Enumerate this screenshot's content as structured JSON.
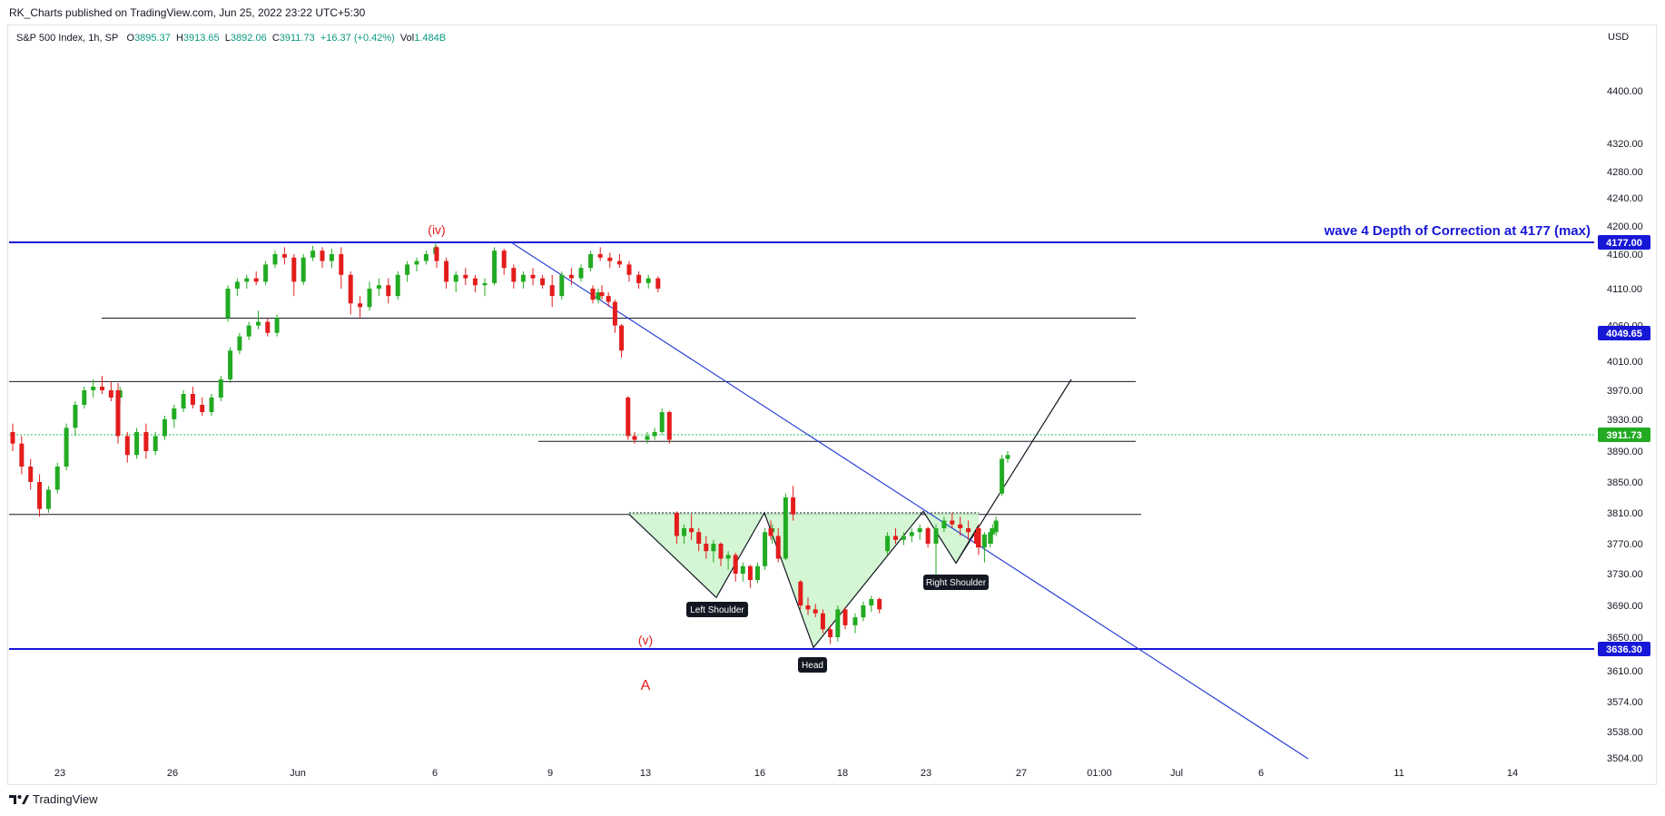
{
  "publisher": "RK_Charts published on TradingView.com, Jun 25, 2022 23:22 UTC+5:30",
  "legend": {
    "symbol": "S&P 500 Index, 1h, SP",
    "o_label": "O",
    "o": "3895.37",
    "h_label": "H",
    "h": "3913.65",
    "l_label": "L",
    "l": "3892.06",
    "c_label": "C",
    "c": "3911.73",
    "change": "+16.37 (+0.42%)",
    "vol_label": "Vol",
    "vol": "1.484B"
  },
  "currency": "USD",
  "footer": {
    "brand": "TradingView"
  },
  "colors": {
    "up": "#22ab22",
    "down": "#e31c1c",
    "blue": "#1717d8",
    "trend": "#2a3fd6",
    "black": "#131722",
    "pattern_fill": "#ccf5cc",
    "label_red": "#e31c1c",
    "dotted": "#22c55e"
  },
  "chart_data": {
    "type": "candlestick",
    "title": "",
    "y_axis": {
      "ticks": [
        4400,
        4320,
        4280,
        4240,
        4200,
        4160,
        4110,
        4060,
        4010,
        3970,
        3930,
        3890,
        3850,
        3810,
        3770,
        3730,
        3690,
        3650,
        3610,
        3574,
        3538,
        3504
      ],
      "tick_labels": [
        "4400.00",
        "4320.00",
        "4280.00",
        "4240.00",
        "4200.00",
        "4160.00",
        "4110.00",
        "4060.00",
        "4010.00",
        "3970.00",
        "3930.00",
        "3890.00",
        "3850.00",
        "3810.00",
        "3770.00",
        "3730.00",
        "3690.00",
        "3650.00",
        "3610.00",
        "3574.00",
        "3538.00",
        "3504.00"
      ]
    },
    "x_axis": {
      "tick_labels": [
        "23",
        "26",
        "Jun",
        "6",
        "9",
        "13",
        "16",
        "18",
        "23",
        "27",
        "01:00",
        "Jul",
        "6",
        "11",
        "14"
      ]
    },
    "price_labels": [
      {
        "label": "4177.00",
        "value": 4177,
        "color": "#1717d8"
      },
      {
        "label": "4049.65",
        "value": 4049.65,
        "color": "#1717d8"
      },
      {
        "label": "3911.73",
        "value": 3911.73,
        "color": "#22ab22"
      },
      {
        "label": "3636.30",
        "value": 3636.3,
        "color": "#1717d8"
      }
    ],
    "horizontal_lines": [
      {
        "value": 4177,
        "color": "blue",
        "note": "wave 4 top"
      },
      {
        "value": 4070,
        "color": "black"
      },
      {
        "value": 3982,
        "color": "black"
      },
      {
        "value": 3903,
        "color": "black"
      },
      {
        "value": 3808,
        "color": "black"
      },
      {
        "value": 3636.3,
        "color": "blue"
      }
    ],
    "annotations": {
      "wave_top": "wave 4 Depth of Correction at  4177 (max)",
      "wave_iv": "(iv)",
      "wave_v": "(v)",
      "wave_a": "A",
      "left_shoulder": "Left Shoulder",
      "head": "Head",
      "right_shoulder": "Right Shoulder"
    },
    "candles_ohlc": [
      [
        3915,
        3925,
        3890,
        3900
      ],
      [
        3900,
        3910,
        3860,
        3870
      ],
      [
        3870,
        3880,
        3840,
        3850
      ],
      [
        3850,
        3860,
        3805,
        3815
      ],
      [
        3815,
        3845,
        3810,
        3840
      ],
      [
        3840,
        3875,
        3835,
        3870
      ],
      [
        3870,
        3925,
        3865,
        3920
      ],
      [
        3920,
        3955,
        3910,
        3950
      ],
      [
        3950,
        3975,
        3945,
        3970
      ],
      [
        3970,
        3985,
        3960,
        3975
      ],
      [
        3975,
        3990,
        3965,
        3970
      ],
      [
        3970,
        3982,
        3955,
        3960
      ],
      [
        3960,
        3975,
        3950,
        3970
      ],
      [
        3970,
        3980,
        3900,
        3910
      ],
      [
        3910,
        3915,
        3875,
        3885
      ],
      [
        3885,
        3920,
        3880,
        3915
      ],
      [
        3915,
        3925,
        3880,
        3890
      ],
      [
        3890,
        3915,
        3885,
        3910
      ],
      [
        3910,
        3935,
        3905,
        3930
      ],
      [
        3930,
        3950,
        3920,
        3945
      ],
      [
        3945,
        3970,
        3940,
        3965
      ],
      [
        3965,
        3975,
        3945,
        3950
      ],
      [
        3950,
        3960,
        3935,
        3940
      ],
      [
        3940,
        3965,
        3935,
        3960
      ],
      [
        3960,
        3990,
        3955,
        3985
      ],
      [
        3985,
        4030,
        3980,
        4025
      ],
      [
        4025,
        4050,
        4020,
        4045
      ],
      [
        4045,
        4065,
        4040,
        4060
      ],
      [
        4060,
        4080,
        4055,
        4065
      ],
      [
        4065,
        4070,
        4045,
        4050
      ],
      [
        4050,
        4075,
        4045,
        4070
      ],
      [
        4070,
        4115,
        4065,
        4110
      ],
      [
        4110,
        4125,
        4100,
        4120
      ],
      [
        4120,
        4130,
        4110,
        4125
      ],
      [
        4125,
        4135,
        4115,
        4120
      ],
      [
        4120,
        4150,
        4115,
        4145
      ],
      [
        4145,
        4165,
        4140,
        4160
      ],
      [
        4160,
        4170,
        4145,
        4155
      ],
      [
        4155,
        4160,
        4100,
        4120
      ],
      [
        4120,
        4160,
        4115,
        4155
      ],
      [
        4155,
        4172,
        4150,
        4165
      ],
      [
        4165,
        4170,
        4140,
        4150
      ],
      [
        4150,
        4168,
        4140,
        4160
      ],
      [
        4160,
        4170,
        4110,
        4130
      ],
      [
        4130,
        4135,
        4075,
        4090
      ],
      [
        4090,
        4100,
        4070,
        4085
      ],
      [
        4085,
        4120,
        4080,
        4110
      ],
      [
        4110,
        4125,
        4100,
        4115
      ],
      [
        4115,
        4125,
        4090,
        4100
      ],
      [
        4100,
        4135,
        4095,
        4130
      ],
      [
        4130,
        4150,
        4120,
        4145
      ],
      [
        4145,
        4155,
        4135,
        4150
      ],
      [
        4150,
        4165,
        4145,
        4160
      ],
      [
        4160,
        4177,
        4155,
        4170
      ],
      [
        4170,
        4172,
        4140,
        4150
      ],
      [
        4150,
        4155,
        4110,
        4120
      ],
      [
        4120,
        4135,
        4105,
        4130
      ],
      [
        4130,
        4140,
        4115,
        4125
      ],
      [
        4125,
        4130,
        4105,
        4115
      ],
      [
        4115,
        4125,
        4100,
        4118
      ],
      [
        4118,
        4170,
        4115,
        4165
      ],
      [
        4165,
        4168,
        4130,
        4140
      ],
      [
        4140,
        4145,
        4110,
        4120
      ],
      [
        4120,
        4135,
        4110,
        4130
      ],
      [
        4130,
        4140,
        4115,
        4125
      ],
      [
        4125,
        4130,
        4110,
        4115
      ],
      [
        4115,
        4130,
        4085,
        4100
      ],
      [
        4100,
        4135,
        4095,
        4130
      ],
      [
        4130,
        4140,
        4115,
        4125
      ],
      [
        4125,
        4145,
        4120,
        4140
      ],
      [
        4140,
        4165,
        4135,
        4160
      ],
      [
        4160,
        4170,
        4150,
        4155
      ],
      [
        4155,
        4162,
        4140,
        4150
      ],
      [
        4150,
        4160,
        4140,
        4145
      ],
      [
        4145,
        4150,
        4120,
        4130
      ],
      [
        4130,
        4135,
        4110,
        4118
      ],
      [
        4118,
        4130,
        4110,
        4125
      ],
      [
        4125,
        4128,
        4105,
        4110
      ],
      [
        4110,
        4115,
        4090,
        4095
      ],
      [
        4095,
        4110,
        4090,
        4105
      ],
      [
        4105,
        4115,
        4095,
        4100
      ],
      [
        4100,
        4105,
        4085,
        4092
      ],
      [
        4092,
        4095,
        4050,
        4060
      ],
      [
        4060,
        4062,
        4015,
        4025
      ],
      [
        3960,
        3962,
        3905,
        3910
      ],
      [
        3910,
        3915,
        3900,
        3905
      ],
      [
        3905,
        3915,
        3900,
        3910
      ],
      [
        3910,
        3920,
        3905,
        3915
      ],
      [
        3915,
        3945,
        3912,
        3940
      ],
      [
        3940,
        3942,
        3900,
        3905
      ],
      [
        3810,
        3812,
        3770,
        3780
      ],
      [
        3780,
        3795,
        3770,
        3790
      ],
      [
        3790,
        3808,
        3775,
        3785
      ],
      [
        3785,
        3790,
        3760,
        3770
      ],
      [
        3770,
        3780,
        3750,
        3760
      ],
      [
        3760,
        3775,
        3745,
        3770
      ],
      [
        3770,
        3772,
        3740,
        3750
      ],
      [
        3750,
        3760,
        3735,
        3755
      ],
      [
        3755,
        3758,
        3720,
        3730
      ],
      [
        3730,
        3745,
        3720,
        3740
      ],
      [
        3740,
        3742,
        3712,
        3722
      ],
      [
        3722,
        3745,
        3718,
        3740
      ],
      [
        3740,
        3790,
        3735,
        3785
      ],
      [
        3785,
        3795,
        3770,
        3790
      ],
      [
        3790,
        3800,
        3775,
        3780
      ],
      [
        3780,
        3790,
        3745,
        3750
      ],
      [
        3750,
        3835,
        3748,
        3830
      ],
      [
        3830,
        3845,
        3800,
        3808
      ],
      [
        3720,
        3722,
        3685,
        3690
      ],
      [
        3690,
        3700,
        3678,
        3685
      ],
      [
        3685,
        3692,
        3675,
        3680
      ],
      [
        3680,
        3685,
        3655,
        3660
      ],
      [
        3660,
        3665,
        3642,
        3650
      ],
      [
        3650,
        3690,
        3645,
        3685
      ],
      [
        3685,
        3688,
        3660,
        3665
      ],
      [
        3665,
        3680,
        3655,
        3675
      ],
      [
        3675,
        3695,
        3670,
        3690
      ],
      [
        3690,
        3702,
        3682,
        3698
      ],
      [
        3698,
        3700,
        3680,
        3685
      ],
      [
        3760,
        3785,
        3755,
        3780
      ],
      [
        3780,
        3790,
        3770,
        3775
      ],
      [
        3775,
        3785,
        3768,
        3780
      ],
      [
        3780,
        3790,
        3772,
        3785
      ],
      [
        3785,
        3795,
        3775,
        3790
      ],
      [
        3790,
        3792,
        3765,
        3770
      ],
      [
        3770,
        3795,
        3720,
        3790
      ],
      [
        3790,
        3805,
        3785,
        3800
      ],
      [
        3800,
        3810,
        3790,
        3795
      ],
      [
        3795,
        3805,
        3780,
        3790
      ],
      [
        3790,
        3800,
        3775,
        3785
      ],
      [
        3785,
        3790,
        3765,
        3770
      ],
      [
        3770,
        3785,
        3760,
        3782
      ],
      [
        3782,
        3795,
        3770,
        3790
      ],
      [
        3790,
        3795,
        3755,
        3765
      ],
      [
        3765,
        3775,
        3745,
        3770
      ],
      [
        3770,
        3790,
        3765,
        3785
      ],
      [
        3785,
        3805,
        3780,
        3800
      ],
      [
        3835,
        3885,
        3832,
        3880
      ],
      [
        3880,
        3890,
        3875,
        3885
      ],
      [
        3885,
        3892,
        3880,
        3888
      ],
      [
        3888,
        3895,
        3882,
        3890
      ],
      [
        3890,
        3900,
        3885,
        3895
      ],
      [
        3895,
        3913.65,
        3892.06,
        3911.73
      ]
    ]
  }
}
